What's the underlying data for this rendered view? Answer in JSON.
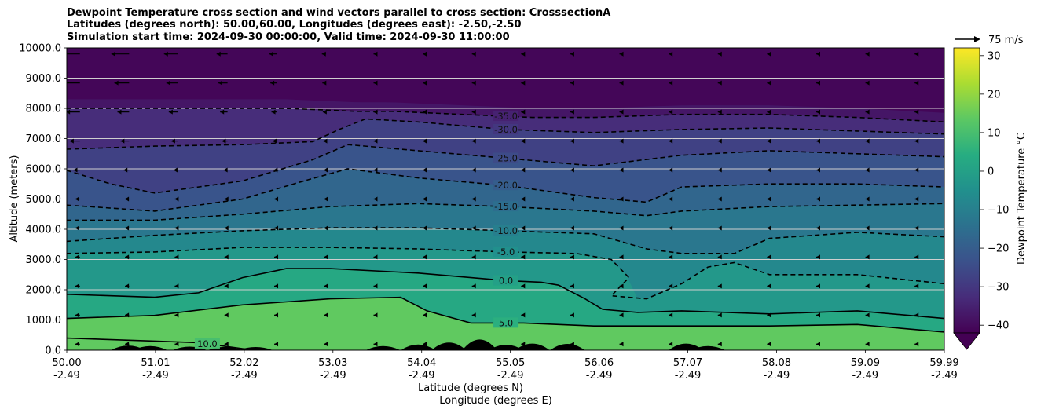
{
  "title_lines": [
    "Dewpoint Temperature cross section and wind vectors parallel to cross section: CrosssectionA",
    "Latitudes (degrees north): 50.00,60.00, Longitudes (degrees east): -2.50,-2.50",
    "Simulation start time: 2024-09-30 00:00:00, Valid time: 2024-09-30 11:00:00"
  ],
  "chart_data": {
    "type": "contourf",
    "variable": "Dewpoint Temperature",
    "ylabel": "Altitude (meters)",
    "xlabel_line1": "Latitude (degrees N)",
    "xlabel_line2": "Longitude (degrees E)",
    "xlim": [
      50.0,
      59.99
    ],
    "ylim": [
      0,
      10000
    ],
    "grid": "horizontal",
    "y_ticks": [
      0,
      1000,
      2000,
      3000,
      4000,
      5000,
      6000,
      7000,
      8000,
      9000,
      10000
    ],
    "y_tick_labels": [
      "0.0",
      "1000.0",
      "2000.0",
      "3000.0",
      "4000.0",
      "5000.0",
      "6000.0",
      "7000.0",
      "8000.0",
      "9000.0",
      "10000.0"
    ],
    "x_ticks": [
      {
        "lat": 50.0,
        "lat_label": "50.00",
        "lon_label": "-2.49"
      },
      {
        "lat": 51.01,
        "lat_label": "51.01",
        "lon_label": "-2.49"
      },
      {
        "lat": 52.02,
        "lat_label": "52.02",
        "lon_label": "-2.49"
      },
      {
        "lat": 53.03,
        "lat_label": "53.03",
        "lon_label": "-2.49"
      },
      {
        "lat": 54.04,
        "lat_label": "54.04",
        "lon_label": "-2.49"
      },
      {
        "lat": 55.05,
        "lat_label": "55.05",
        "lon_label": "-2.49"
      },
      {
        "lat": 56.06,
        "lat_label": "56.06",
        "lon_label": "-2.49"
      },
      {
        "lat": 57.07,
        "lat_label": "57.07",
        "lon_label": "-2.49"
      },
      {
        "lat": 58.08,
        "lat_label": "58.08",
        "lon_label": "-2.49"
      },
      {
        "lat": 59.09,
        "lat_label": "59.09",
        "lon_label": "-2.49"
      },
      {
        "lat": 59.99,
        "lat_label": "59.99",
        "lon_label": "-2.49"
      }
    ],
    "contour_levels": [
      {
        "value": -35,
        "label": "-35.0",
        "style": "dashed",
        "points": [
          [
            50.0,
            8000
          ],
          [
            51.5,
            8000
          ],
          [
            52.5,
            8000
          ],
          [
            53.3,
            7900
          ],
          [
            53.7,
            7900
          ],
          [
            54.5,
            7800
          ],
          [
            55.3,
            7700
          ],
          [
            56.0,
            7700
          ],
          [
            57.0,
            7800
          ],
          [
            58.0,
            7800
          ],
          [
            59.0,
            7700
          ],
          [
            59.99,
            7550
          ]
        ]
      },
      {
        "value": -30,
        "label": "-30.0",
        "style": "dashed",
        "points": [
          [
            50.0,
            6650
          ],
          [
            51.0,
            6750
          ],
          [
            52.0,
            6800
          ],
          [
            52.8,
            6900
          ],
          [
            53.1,
            7300
          ],
          [
            53.4,
            7650
          ],
          [
            54.0,
            7550
          ],
          [
            55.0,
            7300
          ],
          [
            56.0,
            7200
          ],
          [
            57.0,
            7300
          ],
          [
            58.0,
            7350
          ],
          [
            59.0,
            7250
          ],
          [
            59.99,
            7150
          ]
        ]
      },
      {
        "value": -25,
        "label": "-25.0",
        "style": "dashed",
        "points": [
          [
            50.0,
            5950
          ],
          [
            50.5,
            5500
          ],
          [
            51.0,
            5200
          ],
          [
            52.0,
            5600
          ],
          [
            52.8,
            6300
          ],
          [
            53.2,
            6800
          ],
          [
            54.0,
            6600
          ],
          [
            55.0,
            6350
          ],
          [
            56.0,
            6100
          ],
          [
            57.0,
            6450
          ],
          [
            58.0,
            6600
          ],
          [
            59.0,
            6500
          ],
          [
            59.99,
            6400
          ]
        ]
      },
      {
        "value": -20,
        "label": "-20.0",
        "style": "dashed",
        "points": [
          [
            50.0,
            4800
          ],
          [
            51.0,
            4600
          ],
          [
            52.0,
            5000
          ],
          [
            52.7,
            5600
          ],
          [
            53.2,
            6000
          ],
          [
            54.0,
            5700
          ],
          [
            55.0,
            5450
          ],
          [
            56.0,
            5050
          ],
          [
            56.6,
            4900
          ],
          [
            57.0,
            5400
          ],
          [
            58.0,
            5500
          ],
          [
            59.0,
            5500
          ],
          [
            59.99,
            5400
          ]
        ]
      },
      {
        "value": -15,
        "label": "-15.0",
        "style": "dashed",
        "points": [
          [
            50.0,
            4300
          ],
          [
            51.0,
            4300
          ],
          [
            52.0,
            4500
          ],
          [
            53.0,
            4750
          ],
          [
            54.0,
            4850
          ],
          [
            55.0,
            4750
          ],
          [
            56.0,
            4600
          ],
          [
            56.6,
            4450
          ],
          [
            57.0,
            4600
          ],
          [
            58.0,
            4750
          ],
          [
            59.0,
            4800
          ],
          [
            59.99,
            4850
          ]
        ]
      },
      {
        "value": -10,
        "label": "-10.0",
        "style": "dashed",
        "points": [
          [
            50.0,
            3600
          ],
          [
            51.0,
            3800
          ],
          [
            52.0,
            3950
          ],
          [
            53.0,
            4050
          ],
          [
            54.0,
            4050
          ],
          [
            55.0,
            3950
          ],
          [
            56.0,
            3850
          ],
          [
            56.6,
            3350
          ],
          [
            57.0,
            3200
          ],
          [
            57.6,
            3200
          ],
          [
            58.0,
            3700
          ],
          [
            59.0,
            3900
          ],
          [
            59.99,
            3750
          ]
        ]
      },
      {
        "value": -5,
        "label": "-5.0",
        "style": "dashed",
        "points": [
          [
            50.0,
            3200
          ],
          [
            51.0,
            3250
          ],
          [
            52.0,
            3400
          ],
          [
            53.0,
            3400
          ],
          [
            54.0,
            3350
          ],
          [
            55.0,
            3250
          ],
          [
            55.8,
            3200
          ],
          [
            56.2,
            3000
          ],
          [
            56.4,
            2400
          ],
          [
            56.2,
            1800
          ],
          [
            56.6,
            1700
          ],
          [
            57.0,
            2200
          ],
          [
            57.3,
            2750
          ],
          [
            57.6,
            2900
          ],
          [
            58.0,
            2500
          ],
          [
            59.0,
            2500
          ],
          [
            59.99,
            2200
          ]
        ]
      },
      {
        "value": 0,
        "label": "0.0",
        "style": "solid",
        "points": [
          [
            50.0,
            1850
          ],
          [
            51.0,
            1750
          ],
          [
            51.5,
            1900
          ],
          [
            52.0,
            2400
          ],
          [
            52.5,
            2700
          ],
          [
            53.0,
            2700
          ],
          [
            54.0,
            2550
          ],
          [
            55.0,
            2300
          ],
          [
            55.4,
            2250
          ],
          [
            55.6,
            2150
          ],
          [
            55.9,
            1700
          ],
          [
            56.1,
            1350
          ],
          [
            56.5,
            1250
          ],
          [
            57.0,
            1300
          ],
          [
            58.0,
            1200
          ],
          [
            59.0,
            1300
          ],
          [
            59.99,
            1050
          ]
        ]
      },
      {
        "value": 5,
        "label": "5.0",
        "style": "solid",
        "points": [
          [
            50.0,
            1050
          ],
          [
            51.0,
            1150
          ],
          [
            52.0,
            1500
          ],
          [
            53.0,
            1700
          ],
          [
            53.8,
            1750
          ],
          [
            54.1,
            1300
          ],
          [
            54.6,
            900
          ],
          [
            55.2,
            900
          ],
          [
            56.0,
            800
          ],
          [
            57.0,
            800
          ],
          [
            58.0,
            800
          ],
          [
            59.0,
            850
          ],
          [
            59.99,
            600
          ]
        ]
      },
      {
        "value": 10,
        "label": "10.0",
        "style": "solid",
        "points": [
          [
            50.0,
            400
          ],
          [
            51.0,
            300
          ],
          [
            51.5,
            250
          ],
          [
            52.0,
            50
          ],
          [
            52.2,
            0
          ]
        ]
      }
    ],
    "terrain_peaks": [
      {
        "lat": 50.7,
        "height": 150
      },
      {
        "lat": 50.95,
        "height": 120
      },
      {
        "lat": 51.4,
        "height": 80
      },
      {
        "lat": 51.8,
        "height": 60
      },
      {
        "lat": 52.15,
        "height": 50
      },
      {
        "lat": 53.6,
        "height": 120
      },
      {
        "lat": 54.0,
        "height": 220
      },
      {
        "lat": 54.35,
        "height": 350
      },
      {
        "lat": 54.7,
        "height": 550
      },
      {
        "lat": 55.0,
        "height": 200
      },
      {
        "lat": 55.3,
        "height": 280
      },
      {
        "lat": 55.7,
        "height": 260
      },
      {
        "lat": 57.05,
        "height": 280
      },
      {
        "lat": 57.3,
        "height": 120
      }
    ],
    "wind_vectors": {
      "description": "horizontal arrows, largest at upper left",
      "quiver_key_label": "75 m/s"
    },
    "colorbar": {
      "label": "Dewpoint Temperature °C",
      "min": -42,
      "max": 32,
      "extend": "min",
      "ticks": [
        -40,
        -30,
        -20,
        -10,
        0,
        10,
        20,
        30
      ],
      "tick_labels": [
        "−40",
        "−30",
        "−20",
        "−10",
        "0",
        "10",
        "20",
        "30"
      ],
      "colormap": "viridis"
    }
  }
}
